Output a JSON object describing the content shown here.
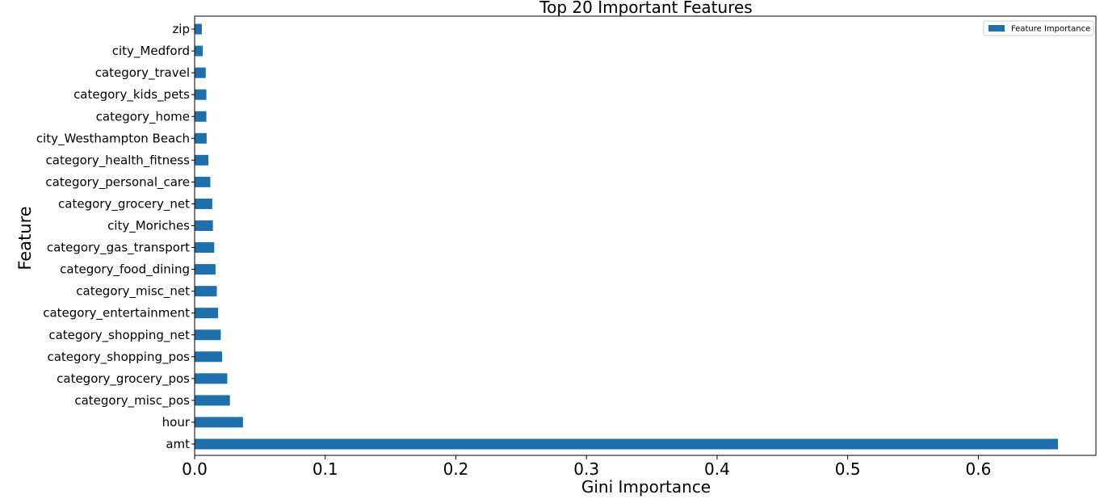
{
  "chart_data": {
    "type": "bar",
    "orientation": "horizontal",
    "title": "Top 20 Important Features",
    "xlabel": "Gini Importance",
    "ylabel": "Feature",
    "xlim": [
      0,
      0.69
    ],
    "xticks": [
      "0.0",
      "0.1",
      "0.2",
      "0.3",
      "0.4",
      "0.5",
      "0.6"
    ],
    "grid": false,
    "legend_position": "top-right",
    "categories": [
      "amt",
      "hour",
      "category_misc_pos",
      "category_grocery_pos",
      "category_shopping_pos",
      "category_shopping_net",
      "category_entertainment",
      "category_misc_net",
      "category_food_dining",
      "category_gas_transport",
      "city_Moriches",
      "category_grocery_net",
      "category_personal_care",
      "category_health_fitness",
      "city_Westhampton Beach",
      "category_home",
      "category_kids_pets",
      "category_travel",
      "city_Medford",
      "zip"
    ],
    "series": [
      {
        "name": "Feature Importance",
        "color": "#1f6fad",
        "values": [
          0.661,
          0.037,
          0.027,
          0.025,
          0.021,
          0.02,
          0.018,
          0.017,
          0.016,
          0.015,
          0.014,
          0.0135,
          0.012,
          0.0105,
          0.0092,
          0.009,
          0.009,
          0.0085,
          0.0062,
          0.0055
        ]
      }
    ]
  }
}
